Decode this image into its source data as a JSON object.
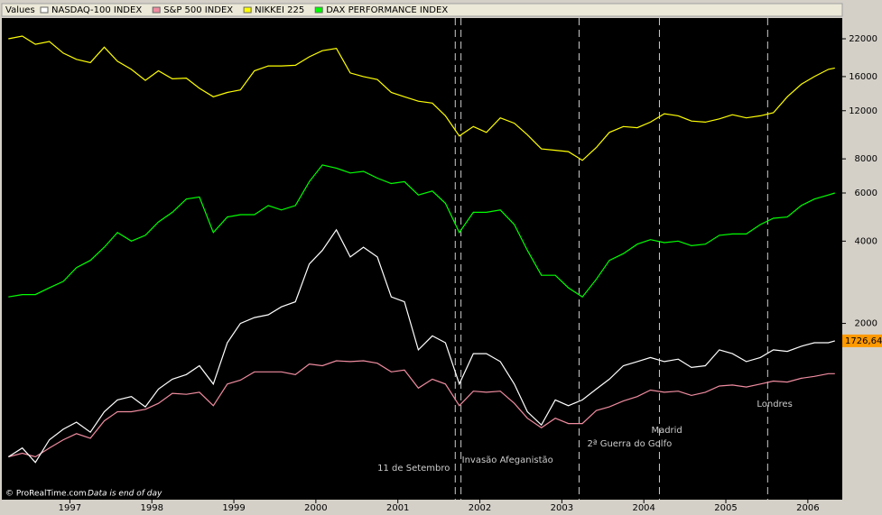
{
  "chart_data": {
    "type": "line",
    "legend_title": "Values",
    "legend": "top",
    "log_scale": true,
    "grid": false,
    "source": "© ProRealTime.com",
    "note": "Data is end of day",
    "x": [
      1996.25,
      1996.42,
      1996.58,
      1996.75,
      1996.92,
      1997.08,
      1997.25,
      1997.42,
      1997.58,
      1997.75,
      1997.92,
      1998.08,
      1998.25,
      1998.42,
      1998.58,
      1998.75,
      1998.92,
      1999.08,
      1999.25,
      1999.42,
      1999.58,
      1999.75,
      1999.92,
      2000.08,
      2000.25,
      2000.42,
      2000.58,
      2000.75,
      2000.92,
      2001.08,
      2001.25,
      2001.42,
      2001.58,
      2001.75,
      2001.92,
      2002.08,
      2002.25,
      2002.42,
      2002.58,
      2002.75,
      2002.92,
      2003.08,
      2003.25,
      2003.42,
      2003.58,
      2003.75,
      2003.92,
      2004.08,
      2004.25,
      2004.42,
      2004.58,
      2004.75,
      2004.92,
      2005.08,
      2005.25,
      2005.42,
      2005.58,
      2005.75,
      2005.92,
      2006.08,
      2006.25,
      2006.33
    ],
    "series": [
      {
        "name": "NASDAQ-100 INDEX",
        "color": "#ffffff",
        "values": [
          650,
          700,
          620,
          750,
          820,
          870,
          800,
          950,
          1050,
          1080,
          990,
          1150,
          1250,
          1300,
          1400,
          1200,
          1700,
          2000,
          2100,
          2150,
          2300,
          2400,
          3300,
          3700,
          4400,
          3500,
          3800,
          3500,
          2500,
          2400,
          1600,
          1800,
          1700,
          1200,
          1550,
          1550,
          1450,
          1200,
          950,
          850,
          1050,
          1000,
          1050,
          1150,
          1250,
          1400,
          1450,
          1500,
          1450,
          1480,
          1380,
          1400,
          1600,
          1550,
          1450,
          1500,
          1600,
          1580,
          1650,
          1700,
          1700,
          1726.64
        ]
      },
      {
        "name": "S&P 500 INDEX",
        "color": "#f08ca0",
        "values": [
          650,
          670,
          650,
          700,
          750,
          790,
          760,
          880,
          950,
          950,
          970,
          1020,
          1110,
          1100,
          1120,
          1000,
          1200,
          1240,
          1330,
          1330,
          1330,
          1300,
          1420,
          1400,
          1460,
          1450,
          1460,
          1430,
          1330,
          1350,
          1160,
          1250,
          1200,
          1000,
          1130,
          1120,
          1130,
          1020,
          900,
          830,
          900,
          860,
          860,
          960,
          990,
          1040,
          1080,
          1140,
          1120,
          1130,
          1090,
          1120,
          1180,
          1190,
          1170,
          1200,
          1230,
          1220,
          1260,
          1280,
          1310,
          1310
        ]
      },
      {
        "name": "NIKKEI 225",
        "color": "#ffff00",
        "values": [
          22000,
          22500,
          21000,
          21500,
          19500,
          18500,
          18000,
          20500,
          18200,
          17000,
          15500,
          16800,
          15700,
          15800,
          14500,
          13500,
          14000,
          14300,
          16800,
          17500,
          17500,
          17600,
          18900,
          19900,
          20300,
          16500,
          16000,
          15600,
          14000,
          13500,
          13000,
          12800,
          11500,
          9700,
          10500,
          10000,
          11300,
          10800,
          9800,
          8700,
          8600,
          8500,
          7900,
          8800,
          10000,
          10500,
          10400,
          10900,
          11700,
          11500,
          11000,
          10900,
          11200,
          11600,
          11300,
          11500,
          11800,
          13500,
          15000,
          16000,
          17000,
          17200
        ]
      },
      {
        "name": "DAX PERFORMANCE INDEX",
        "color": "#00ff00",
        "values": [
          2500,
          2550,
          2550,
          2700,
          2850,
          3200,
          3400,
          3800,
          4300,
          4000,
          4200,
          4700,
          5100,
          5700,
          5800,
          4300,
          4900,
          5000,
          5000,
          5400,
          5200,
          5400,
          6600,
          7600,
          7400,
          7100,
          7200,
          6800,
          6500,
          6600,
          5900,
          6100,
          5500,
          4300,
          5100,
          5100,
          5200,
          4600,
          3700,
          3000,
          3000,
          2700,
          2500,
          2900,
          3400,
          3600,
          3900,
          4050,
          3950,
          4000,
          3850,
          3900,
          4200,
          4250,
          4250,
          4600,
          4850,
          4900,
          5400,
          5700,
          5900,
          6000
        ]
      }
    ],
    "last_label": {
      "value": 1726.64,
      "label": "1726,64"
    },
    "events": [
      {
        "label": "11 de Setembro",
        "x": 2001.7
      },
      {
        "label": "Invasão Afeganistão",
        "x": 2001.77
      },
      {
        "label": "2ª Guerra do Golfo",
        "x": 2003.21
      },
      {
        "label": "Madrid",
        "x": 2004.19
      },
      {
        "label": "Londres",
        "x": 2005.51
      }
    ],
    "xlim": [
      1996.17,
      2006.42
    ],
    "xticks": [
      1997,
      1998,
      1999,
      2000,
      2001,
      2002,
      2003,
      2004,
      2005,
      2006
    ],
    "ylim": [
      453,
      26200
    ],
    "yticks": [
      2000,
      4000,
      6000,
      8000,
      12000,
      16000,
      22000
    ]
  }
}
